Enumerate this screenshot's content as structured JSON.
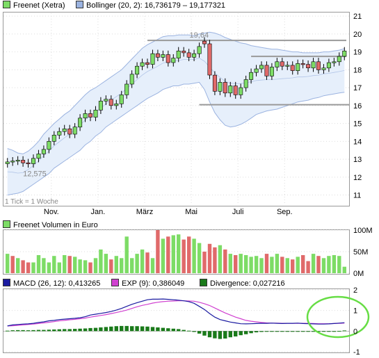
{
  "legend": {
    "price": "Freenet (Xetra)",
    "bollinger": "Bollinger (20, 2): 16,736179 – 19,177321",
    "volume": "Freenet Volumen in Euro",
    "macd": "MACD (26, 12): 0,413265",
    "exp": "EXP (9): 0,386049",
    "divergence": "Divergence: 0,027216"
  },
  "colors": {
    "up": "#7ddc66",
    "down": "#e06a6a",
    "band_fill": "#e6effb",
    "band_line": "#9bb3e0",
    "macd": "#1a1aa0",
    "exp": "#d040d0",
    "divergence": "#1a7a1a",
    "annotation_circle": "#66dd44",
    "level_line": "#999999"
  },
  "chart_data": [
    {
      "type": "candlestick",
      "title": "Freenet (Xetra)",
      "xlabels": [
        "Nov.",
        "Jan.",
        "März",
        "Mai",
        "Juli",
        "Sep."
      ],
      "ylim": [
        10.4,
        21.2
      ],
      "yticks": [
        11,
        12,
        13,
        14,
        15,
        16,
        17,
        18,
        19,
        20,
        21
      ],
      "annotations": [
        "19,64",
        "12,575"
      ],
      "note": "1 Tick = 1 Woche",
      "levels": [
        19.64,
        18.75,
        16.05
      ],
      "close": [
        12.85,
        12.9,
        12.95,
        12.8,
        12.75,
        13.05,
        13.3,
        13.55,
        14.0,
        14.35,
        14.55,
        14.7,
        14.4,
        14.8,
        15.3,
        15.55,
        15.35,
        15.75,
        16.25,
        16.35,
        16.0,
        16.1,
        16.6,
        17.2,
        17.75,
        18.2,
        18.4,
        18.3,
        18.9,
        18.7,
        18.85,
        18.4,
        18.65,
        19.05,
        18.95,
        18.7,
        18.9,
        19.3,
        19.45,
        17.7,
        16.8,
        17.3,
        16.7,
        17.1,
        16.6,
        17.0,
        17.45,
        17.85,
        18.05,
        18.25,
        17.65,
        18.15,
        18.45,
        18.2,
        18.25,
        17.95,
        18.35,
        18.3,
        18.1,
        18.45,
        18.0,
        18.1,
        18.4,
        18.45,
        18.75,
        19.05
      ],
      "open": [
        12.75,
        12.85,
        12.9,
        12.95,
        12.8,
        12.75,
        13.05,
        13.3,
        13.55,
        14.0,
        14.35,
        14.55,
        14.7,
        14.4,
        14.8,
        15.3,
        15.55,
        15.35,
        15.75,
        16.25,
        16.35,
        16.0,
        16.1,
        16.6,
        17.2,
        17.75,
        18.2,
        18.4,
        18.3,
        18.9,
        18.7,
        18.85,
        18.4,
        18.65,
        19.05,
        18.95,
        18.7,
        18.9,
        19.6,
        19.45,
        17.7,
        16.8,
        17.3,
        16.7,
        17.1,
        16.6,
        17.0,
        17.45,
        17.85,
        18.05,
        18.25,
        17.65,
        18.15,
        18.45,
        18.2,
        18.25,
        17.95,
        18.35,
        18.3,
        18.1,
        18.45,
        18.0,
        18.1,
        18.4,
        18.45,
        18.75
      ]
    },
    {
      "type": "bollinger",
      "upper": [
        13.6,
        13.5,
        13.35,
        13.3,
        13.45,
        13.7,
        14.0,
        14.4,
        14.7,
        15.0,
        15.25,
        15.5,
        15.7,
        16.0,
        16.3,
        16.6,
        16.85,
        17.0,
        17.2,
        17.4,
        17.6,
        17.8,
        18.0,
        18.3,
        18.6,
        18.9,
        19.2,
        19.4,
        19.55,
        19.7,
        19.85,
        19.9,
        19.9,
        19.95,
        19.95,
        19.95,
        19.9,
        20.0,
        20.05,
        20.1,
        20.05,
        19.95,
        19.8,
        19.7,
        19.6,
        19.5,
        19.45,
        19.35,
        19.3,
        19.25,
        19.2,
        19.15,
        19.15,
        19.1,
        19.05,
        19.0,
        19.0,
        18.95,
        18.95,
        18.95,
        18.95,
        19.0,
        19.0,
        19.05,
        19.1,
        19.18
      ],
      "lower": [
        11.0,
        11.05,
        11.1,
        11.2,
        11.4,
        11.6,
        11.8,
        12.0,
        12.2,
        12.5,
        12.7,
        12.9,
        13.1,
        13.3,
        13.5,
        13.8,
        14.0,
        14.3,
        14.5,
        14.8,
        15.0,
        15.2,
        15.4,
        15.6,
        15.8,
        16.0,
        16.2,
        16.4,
        16.55,
        16.7,
        16.9,
        17.0,
        17.1,
        17.1,
        17.2,
        17.2,
        17.25,
        17.3,
        16.9,
        16.2,
        15.6,
        15.2,
        14.9,
        14.8,
        14.85,
        14.95,
        15.1,
        15.3,
        15.5,
        15.6,
        15.7,
        15.75,
        15.8,
        15.9,
        16.0,
        16.1,
        16.2,
        16.25,
        16.3,
        16.4,
        16.45,
        16.55,
        16.6,
        16.65,
        16.7,
        16.74
      ]
    },
    {
      "type": "bar",
      "title": "Freenet Volumen in Euro",
      "ylim": [
        0,
        100
      ],
      "yticks": [
        "100M",
        "50M",
        "0M"
      ],
      "values": [
        45,
        40,
        35,
        30,
        25,
        25,
        42,
        35,
        25,
        40,
        25,
        42,
        40,
        38,
        32,
        30,
        25,
        35,
        55,
        45,
        32,
        40,
        35,
        85,
        35,
        45,
        55,
        48,
        35,
        100,
        80,
        85,
        88,
        90,
        78,
        85,
        80,
        70,
        50,
        68,
        60,
        65,
        55,
        45,
        42,
        45,
        42,
        38,
        40,
        35,
        45,
        38,
        45,
        38,
        35,
        32,
        38,
        42,
        28,
        45,
        40,
        35,
        40,
        42,
        40,
        15
      ],
      "colors": [
        "up",
        "down",
        "up",
        "down",
        "down",
        "up",
        "up",
        "up",
        "up",
        "up",
        "up",
        "up",
        "down",
        "up",
        "up",
        "up",
        "down",
        "up",
        "up",
        "up",
        "down",
        "up",
        "up",
        "up",
        "up",
        "up",
        "up",
        "down",
        "up",
        "down",
        "up",
        "down",
        "up",
        "up",
        "down",
        "down",
        "up",
        "up",
        "down",
        "down",
        "down",
        "up",
        "down",
        "up",
        "down",
        "up",
        "up",
        "up",
        "up",
        "up",
        "down",
        "up",
        "up",
        "down",
        "up",
        "down",
        "up",
        "down",
        "down",
        "up",
        "down",
        "up",
        "up",
        "up",
        "up",
        "up"
      ]
    },
    {
      "type": "line",
      "ylim": [
        -1,
        2
      ],
      "yticks": [
        2,
        1,
        0,
        -1
      ],
      "series": [
        {
          "name": "MACD (26, 12)",
          "values": [
            0.25,
            0.3,
            0.32,
            0.34,
            0.35,
            0.38,
            0.42,
            0.45,
            0.5,
            0.52,
            0.56,
            0.58,
            0.6,
            0.62,
            0.65,
            0.7,
            0.78,
            0.82,
            0.86,
            0.9,
            0.95,
            1.02,
            1.1,
            1.2,
            1.3,
            1.38,
            1.45,
            1.52,
            1.55,
            1.55,
            1.56,
            1.54,
            1.52,
            1.5,
            1.47,
            1.43,
            1.35,
            1.2,
            1.05,
            0.85,
            0.68,
            0.56,
            0.5,
            0.44,
            0.4,
            0.36,
            0.35,
            0.36,
            0.37,
            0.38,
            0.38,
            0.39,
            0.38,
            0.37,
            0.38,
            0.38,
            0.39,
            0.37,
            0.36,
            0.35,
            0.34,
            0.34,
            0.35,
            0.37,
            0.39,
            0.41
          ]
        },
        {
          "name": "EXP (9)",
          "values": [
            0.25,
            0.26,
            0.28,
            0.3,
            0.32,
            0.34,
            0.37,
            0.4,
            0.43,
            0.46,
            0.5,
            0.52,
            0.55,
            0.57,
            0.6,
            0.63,
            0.68,
            0.72,
            0.76,
            0.8,
            0.85,
            0.9,
            0.96,
            1.02,
            1.1,
            1.18,
            1.25,
            1.3,
            1.36,
            1.4,
            1.43,
            1.45,
            1.46,
            1.47,
            1.47,
            1.46,
            1.45,
            1.4,
            1.33,
            1.24,
            1.12,
            1.0,
            0.88,
            0.78,
            0.68,
            0.6,
            0.52,
            0.48,
            0.45,
            0.42,
            0.4,
            0.39,
            0.39,
            0.38,
            0.38,
            0.38,
            0.38,
            0.38,
            0.38,
            0.37,
            0.36,
            0.36,
            0.36,
            0.37,
            0.38,
            0.39
          ]
        },
        {
          "name": "Divergence",
          "type": "bar",
          "values": [
            0.02,
            0.04,
            0.05,
            0.05,
            0.04,
            0.05,
            0.06,
            0.06,
            0.07,
            0.08,
            0.09,
            0.1,
            0.1,
            0.11,
            0.12,
            0.13,
            0.15,
            0.16,
            0.18,
            0.2,
            0.22,
            0.24,
            0.25,
            0.25,
            0.24,
            0.24,
            0.23,
            0.22,
            0.2,
            0.18,
            0.16,
            0.14,
            0.12,
            0.1,
            0.06,
            0.02,
            -0.04,
            -0.12,
            -0.22,
            -0.3,
            -0.35,
            -0.38,
            -0.36,
            -0.3,
            -0.26,
            -0.2,
            -0.15,
            -0.1,
            -0.06,
            -0.04,
            -0.02,
            -0.03,
            -0.02,
            -0.02,
            -0.01,
            -0.01,
            -0.02,
            -0.02,
            -0.02,
            -0.02,
            -0.02,
            -0.01,
            -0.01,
            0.0,
            0.01,
            0.03
          ]
        }
      ]
    }
  ]
}
